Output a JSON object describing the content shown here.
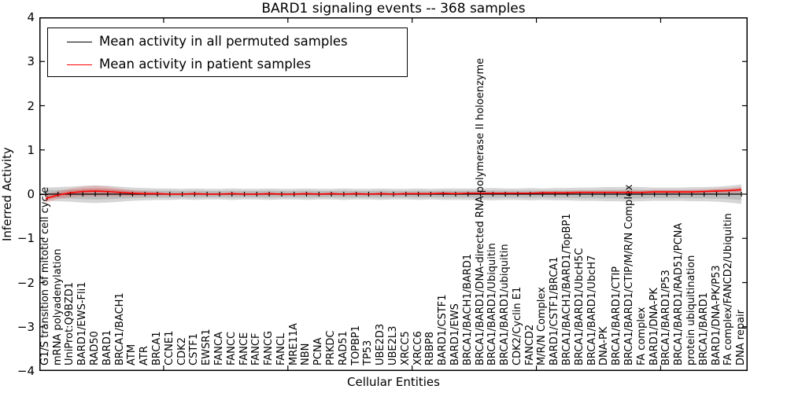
{
  "figure": {
    "title": "BARD1 signaling events -- 368 samples",
    "xlabel": "Cellular Entities",
    "ylabel": "Inferred Activity"
  },
  "legend": {
    "entries": [
      {
        "label": "Mean activity in all permuted samples",
        "color": "#000000"
      },
      {
        "label": "Mean activity in patient samples",
        "color": "#ff0000"
      }
    ]
  },
  "chart_data": {
    "type": "line",
    "title": "BARD1 signaling events -- 368 samples",
    "xlabel": "Cellular Entities",
    "ylabel": "Inferred Activity",
    "ylim": [
      -4,
      4
    ],
    "yticks": [
      4,
      3,
      2,
      1,
      0,
      -1,
      -2,
      -3,
      -4
    ],
    "ytick_labels": [
      "4",
      "3",
      "2",
      "1",
      "0",
      "−1",
      "−2",
      "−3",
      "−4"
    ],
    "xticks": [
      0,
      10,
      20,
      30,
      40,
      50
    ],
    "grid": false,
    "legend_position": "upper left",
    "colors": {
      "permuted": "#000000",
      "patient": "#ff0000",
      "band_gray": "#000000",
      "band_red": "#ff0000"
    },
    "categories": [
      "G1/S transition of mitotic cell cycle",
      "mRNA polyadenylation",
      "UniProt:Q9BZD1",
      "BARD1/EWS-Fli1",
      "RAD50",
      "BARD1",
      "BRCA1/BACH1",
      "ATM",
      "ATR",
      "BRCA1",
      "CCNE1",
      "CDK2",
      "CSTF1",
      "EWSR1",
      "FANCA",
      "FANCC",
      "FANCE",
      "FANCF",
      "FANCG",
      "FANCL",
      "MRE11A",
      "NBN",
      "PCNA",
      "PRKDC",
      "RAD51",
      "TOPBP1",
      "TP53",
      "UBE2D3",
      "UBE2L3",
      "XRCC5",
      "XRCC6",
      "RBBP8",
      "BARD1/CSTF1",
      "BARD1/EWS",
      "BRCA1/BACH1/BARD1",
      "BRCA1/BARD1/DNA-directed RNA polymerase II holoenzyme",
      "BRCA1/BARD1/Ubiquitin",
      "BRCA1/BARD1/ubiquitin",
      "CDK2/Cyclin E1",
      "FANCD2",
      "M/R/N Complex",
      "BARD1/CSTF1/BRCA1",
      "BRCA1/BACH1/BARD1/TopBP1",
      "BRCA1/BARD1/UbcH5C",
      "BRCA1/BARD1/UbcH7",
      "DNA-PK",
      "BRCA1/BARD1/CTIP",
      "BRCA1/BARD1/CTIP/M/R/N Complex",
      "FA complex",
      "BARD1/DNA-PK",
      "BRCA1/BARD1/P53",
      "BRCA1/BARD1/RAD51/PCNA",
      "protein ubiquitination",
      "BRCA1/BARD1",
      "BARD1/DNA-PK/P53",
      "FA complex/FANCD2/Ubiquitin",
      "DNA repair"
    ],
    "series": [
      {
        "name": "Mean activity in all permuted samples",
        "color": "#000000",
        "values": [
          0,
          0,
          0,
          0,
          0,
          0,
          0,
          0,
          0,
          0,
          0,
          0,
          0,
          0,
          0,
          0,
          0,
          0,
          0,
          0,
          0,
          0,
          0,
          0,
          0,
          0,
          0,
          0,
          0,
          0,
          0,
          0,
          0,
          0,
          0,
          0,
          0,
          0,
          0,
          0,
          0,
          0,
          0,
          0,
          0,
          0,
          0,
          0,
          0,
          0,
          0,
          0,
          0,
          0,
          0,
          0,
          0
        ],
        "band_halfwidth": [
          0.15,
          0.16,
          0.17,
          0.19,
          0.2,
          0.19,
          0.17,
          0.15,
          0.14,
          0.13,
          0.13,
          0.12,
          0.13,
          0.12,
          0.12,
          0.13,
          0.12,
          0.12,
          0.13,
          0.12,
          0.12,
          0.13,
          0.12,
          0.12,
          0.13,
          0.12,
          0.12,
          0.13,
          0.12,
          0.12,
          0.13,
          0.12,
          0.13,
          0.13,
          0.13,
          0.13,
          0.14,
          0.13,
          0.13,
          0.14,
          0.13,
          0.14,
          0.14,
          0.15,
          0.15,
          0.16,
          0.16,
          0.17,
          0.16,
          0.15,
          0.15,
          0.15,
          0.16,
          0.16,
          0.17,
          0.19,
          0.22
        ]
      },
      {
        "name": "Mean activity in patient samples",
        "color": "#ff0000",
        "values": [
          -0.1,
          -0.02,
          0.03,
          0.06,
          0.07,
          0.06,
          0.04,
          0.02,
          0.01,
          0.01,
          0.0,
          0.0,
          0.01,
          0.0,
          0.0,
          0.01,
          0.0,
          0.0,
          0.01,
          0.0,
          0.0,
          0.01,
          0.0,
          0.01,
          0.0,
          0.01,
          0.0,
          0.01,
          0.0,
          0.01,
          0.01,
          0.01,
          0.02,
          0.01,
          0.02,
          0.02,
          0.02,
          0.02,
          0.02,
          0.02,
          0.03,
          0.03,
          0.03,
          0.04,
          0.04,
          0.04,
          0.04,
          0.04,
          0.04,
          0.05,
          0.05,
          0.05,
          0.05,
          0.06,
          0.07,
          0.08,
          0.1
        ],
        "band_halfwidth": [
          0.1,
          0.09,
          0.1,
          0.11,
          0.12,
          0.11,
          0.09,
          0.07,
          0.05,
          0.04,
          0.03,
          0.03,
          0.03,
          0.03,
          0.03,
          0.03,
          0.03,
          0.03,
          0.03,
          0.03,
          0.03,
          0.03,
          0.03,
          0.03,
          0.03,
          0.03,
          0.03,
          0.03,
          0.03,
          0.03,
          0.03,
          0.03,
          0.03,
          0.03,
          0.03,
          0.03,
          0.03,
          0.03,
          0.03,
          0.03,
          0.04,
          0.04,
          0.04,
          0.04,
          0.04,
          0.04,
          0.04,
          0.04,
          0.04,
          0.05,
          0.05,
          0.05,
          0.05,
          0.05,
          0.06,
          0.06,
          0.07
        ]
      }
    ]
  }
}
